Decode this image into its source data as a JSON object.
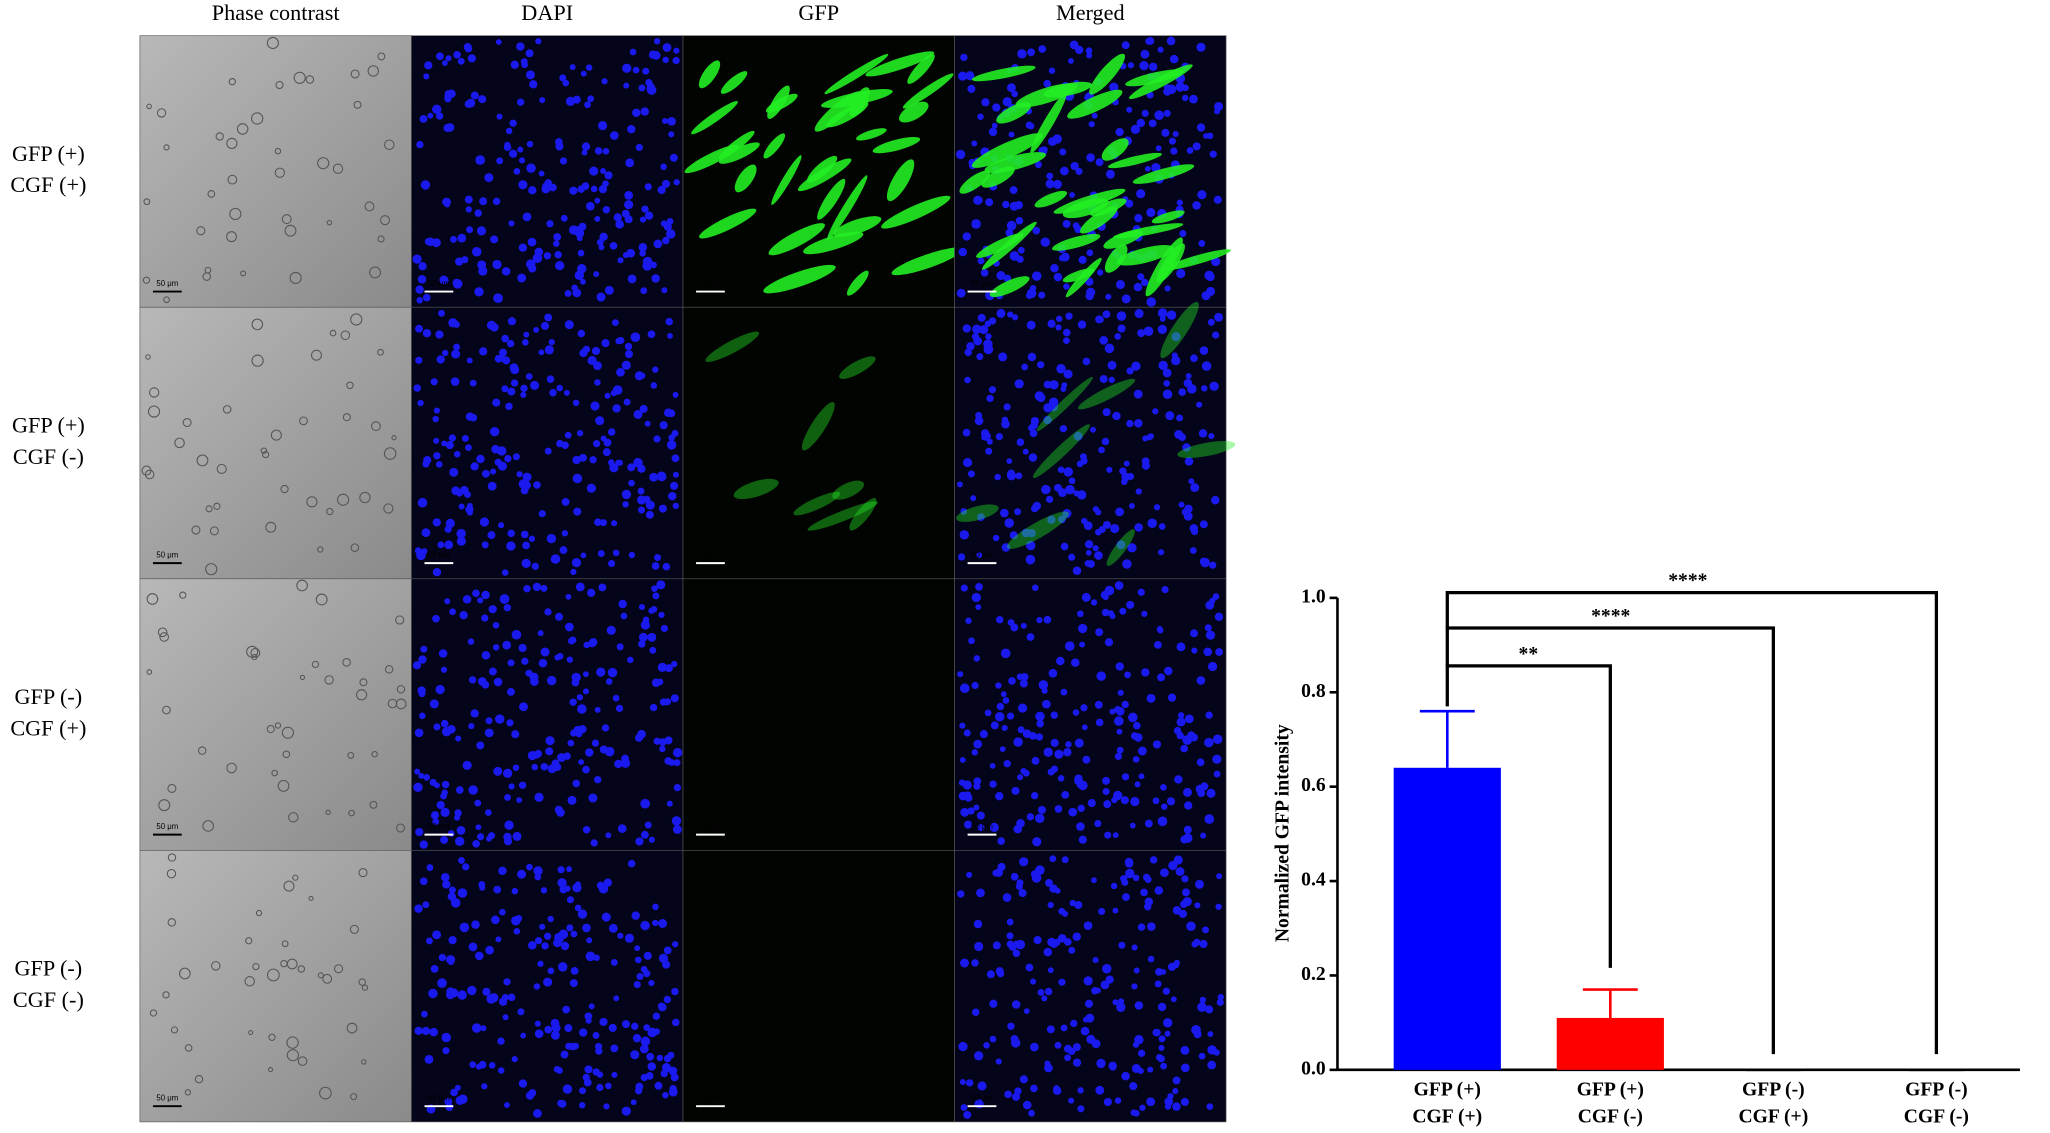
{
  "figure": {
    "column_headers": [
      "Phase contrast",
      "DAPI",
      "GFP",
      "Merged"
    ],
    "row_labels": [
      [
        "GFP (+)",
        "CGF (+)"
      ],
      [
        "GFP (+)",
        "CGF (-)"
      ],
      [
        "GFP (-)",
        "CGF (+)"
      ],
      [
        "GFP (-)",
        "CGF (-)"
      ]
    ],
    "scale_bar_label": "50 μm"
  },
  "chart_data": {
    "type": "bar",
    "y_label": "Normalized GFP intensity",
    "categories": [
      [
        "GFP (+)",
        "CGF (+)"
      ],
      [
        "GFP (+)",
        "CGF (-)"
      ],
      [
        "GFP (-)",
        "CGF (+)"
      ],
      [
        "GFP (-)",
        "CGF (-)"
      ]
    ],
    "values": [
      0.64,
      0.11,
      0,
      0
    ],
    "errors": [
      0.12,
      0.06,
      0,
      0
    ],
    "colors": [
      "#0000ff",
      "#ff0000",
      "#000000",
      "#000000"
    ],
    "ylim": [
      0,
      1
    ],
    "yticks": [
      {
        "value": 0,
        "label": "0.0"
      },
      0.2,
      0.4,
      0.6,
      0.8,
      {
        "value": 1,
        "label": "1.0"
      }
    ],
    "annotations": [
      "**",
      "****",
      "****"
    ]
  }
}
